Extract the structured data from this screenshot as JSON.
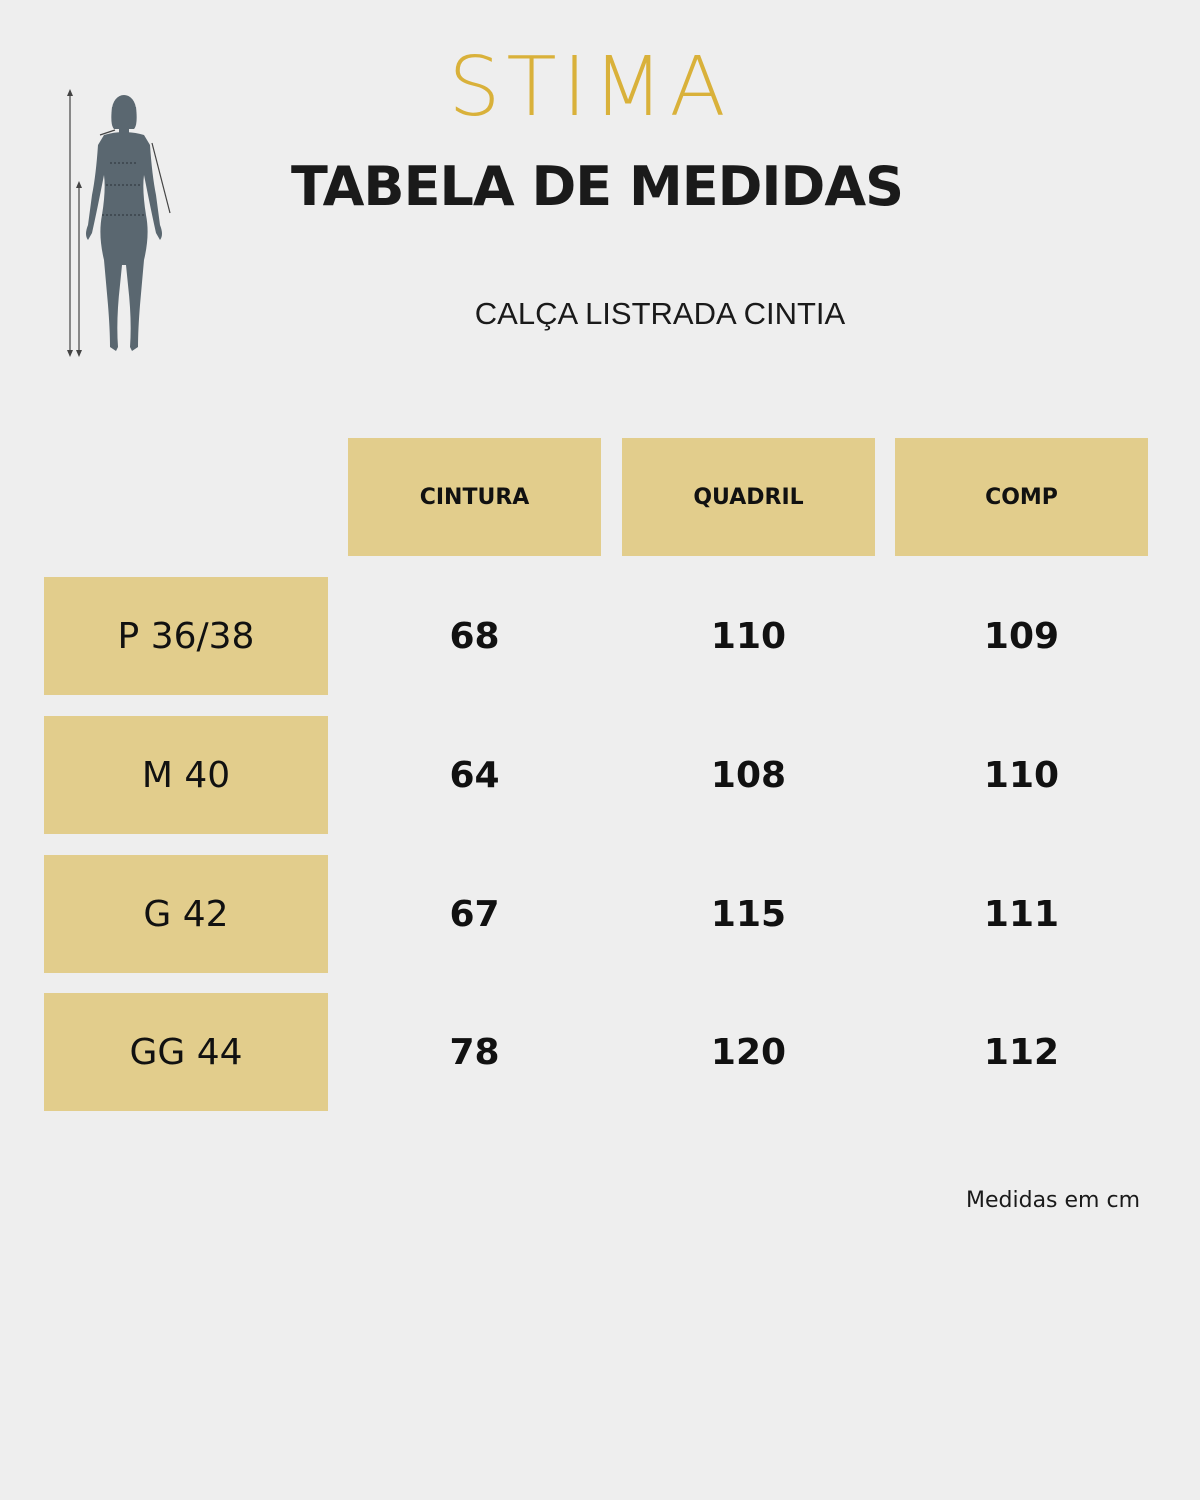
{
  "brand": {
    "logo": "STIMA",
    "accent": "#d9b13a"
  },
  "title": "TABELA DE MEDIDAS",
  "product": "CALÇA LISTRADA CINTIA",
  "colors": {
    "cell_fill": "#e2cd8c",
    "background": "#eeeeee",
    "figure": "#5a6770"
  },
  "table": {
    "headers": [
      "CINTURA",
      "QUADRIL",
      "COMP"
    ],
    "rows": [
      {
        "size": "P 36/38",
        "values": [
          "68",
          "110",
          "109"
        ]
      },
      {
        "size": "M 40",
        "values": [
          "64",
          "108",
          "110"
        ]
      },
      {
        "size": "G 42",
        "values": [
          "67",
          "115",
          "111"
        ]
      },
      {
        "size": "GG 44",
        "values": [
          "78",
          "120",
          "112"
        ]
      }
    ]
  },
  "note": "Medidas em cm",
  "icons": {
    "figure": "body-measurement-icon"
  }
}
